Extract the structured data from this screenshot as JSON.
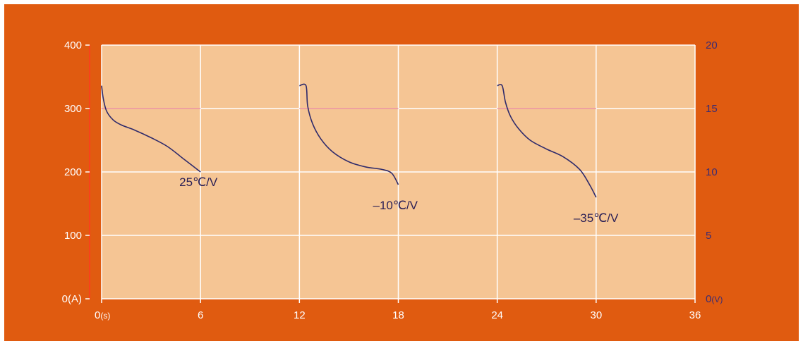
{
  "chart_data": {
    "type": "line",
    "title": "",
    "xlabel": "",
    "ylabel": "",
    "x_ticks": [
      {
        "value": 0,
        "label": "0",
        "unit": "(s)"
      },
      {
        "value": 6,
        "label": "6",
        "unit": ""
      },
      {
        "value": 12,
        "label": "12",
        "unit": ""
      },
      {
        "value": 18,
        "label": "18",
        "unit": ""
      },
      {
        "value": 24,
        "label": "24",
        "unit": ""
      },
      {
        "value": 30,
        "label": "30",
        "unit": ""
      },
      {
        "value": 36,
        "label": "36",
        "unit": ""
      }
    ],
    "y_left_ticks": [
      {
        "value": 0,
        "label": "0(A)"
      },
      {
        "value": 100,
        "label": "100"
      },
      {
        "value": 200,
        "label": "200"
      },
      {
        "value": 300,
        "label": "300"
      },
      {
        "value": 400,
        "label": "400"
      }
    ],
    "y_right_ticks": [
      {
        "value": 0,
        "label": "0",
        "unit": "(V)"
      },
      {
        "value": 5,
        "label": "5",
        "unit": ""
      },
      {
        "value": 10,
        "label": "10",
        "unit": ""
      },
      {
        "value": 15,
        "label": "15",
        "unit": ""
      },
      {
        "value": 20,
        "label": "20",
        "unit": ""
      }
    ],
    "xlim": [
      0,
      36
    ],
    "ylim_left": [
      0,
      400
    ],
    "ylim_right": [
      0,
      20
    ],
    "grid": true,
    "colors": {
      "background": "#e05b10",
      "plot_area": "#f5c594",
      "grid": "#ffffff",
      "current_line": "#e98a92",
      "voltage_line": "#2e2a6b",
      "left_axis": "#ff3b1f",
      "right_tick_text": "#3b2c73",
      "left_tick_text": "#ffffff"
    },
    "current_series": [
      {
        "x": [
          0,
          6
        ],
        "y_left": [
          300,
          300
        ]
      },
      {
        "x": [
          12,
          18
        ],
        "y_left": [
          300,
          300
        ]
      },
      {
        "x": [
          24,
          30
        ],
        "y_left": [
          300,
          300
        ]
      }
    ],
    "voltage_series": [
      {
        "label": "25℃/V",
        "x": [
          0,
          0.1,
          0.3,
          0.7,
          1.2,
          2.0,
          3.0,
          4.0,
          5.0,
          6.0
        ],
        "y_right": [
          16.8,
          15.8,
          14.8,
          14.1,
          13.7,
          13.3,
          12.7,
          12.0,
          11.0,
          10.0
        ]
      },
      {
        "label": "–10℃/V",
        "x": [
          12,
          12.4,
          12.5,
          12.8,
          13.3,
          14.0,
          15.0,
          16.0,
          17.0,
          17.6,
          18.0
        ],
        "y_right": [
          16.8,
          16.8,
          15.2,
          13.8,
          12.6,
          11.6,
          10.8,
          10.4,
          10.2,
          9.9,
          9.0
        ]
      },
      {
        "label": "–35℃/V",
        "x": [
          24,
          24.3,
          24.5,
          24.8,
          25.3,
          26.0,
          27.0,
          28.0,
          29.0,
          29.6,
          30.0
        ],
        "y_right": [
          16.8,
          16.8,
          15.5,
          14.4,
          13.4,
          12.5,
          11.8,
          11.2,
          10.2,
          9.0,
          8.0
        ]
      }
    ]
  }
}
